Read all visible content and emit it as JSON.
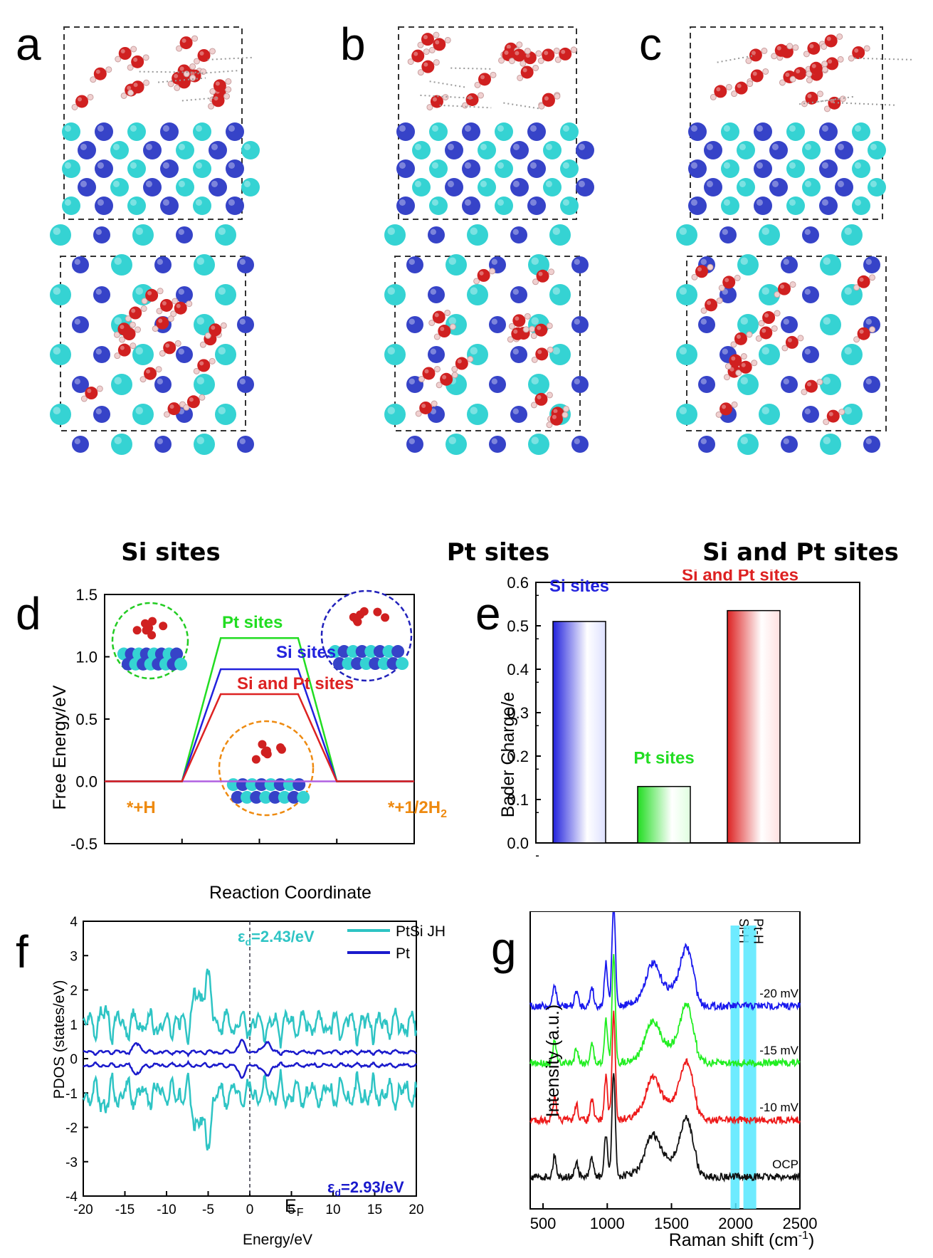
{
  "panel_labels": {
    "a": "a",
    "b": "b",
    "c": "c",
    "d": "d",
    "e": "e",
    "f": "f",
    "g": "g"
  },
  "structures": {
    "a": {
      "caption": "Si sites"
    },
    "b": {
      "caption": "Pt sites"
    },
    "c": {
      "caption": "Si and Pt sites"
    }
  },
  "colors": {
    "si_atom": "#35d3d3",
    "pt_atom": "#3643c8",
    "o_atom": "#d02020",
    "h_atom": "#f0d0d0",
    "pt_sites": "#22dd22",
    "si_sites": "#2222dd",
    "si_pt_sites": "#dd2222",
    "ref_line": "#b060e0",
    "state_label": "#ee8a10",
    "ptsi_jh": "#2ec4c4",
    "pt": "#1a1acc",
    "highlight": "#55e8ff"
  },
  "chart_data": [
    {
      "id": "d",
      "type": "line",
      "xlabel": "Reaction Coordinate",
      "ylabel": "Free Energy/eV",
      "ylim": [
        -0.5,
        1.5
      ],
      "yticks": [
        "-0.5",
        "0.0",
        "0.5",
        "1.0",
        "1.5"
      ],
      "series": [
        {
          "name": "Pt sites",
          "values": [
            0,
            0,
            1.15,
            1.15,
            0,
            0
          ]
        },
        {
          "name": "Si sites",
          "values": [
            0,
            0,
            0.9,
            0.9,
            0,
            0
          ]
        },
        {
          "name": "Si and Pt sites",
          "values": [
            0,
            0,
            0.7,
            0.7,
            0,
            0
          ]
        }
      ],
      "x": [
        0,
        1,
        1.5,
        2.5,
        3,
        4
      ],
      "annotations": {
        "initial": "*+H",
        "final_prefix": "*+1/2H",
        "final_sub": "2"
      }
    },
    {
      "id": "e",
      "type": "bar",
      "ylabel": "Bader Charge/e",
      "ylim": [
        0,
        0.6
      ],
      "yticks": [
        "0.0",
        "0.1",
        "0.2",
        "0.3",
        "0.4",
        "0.5",
        "0.6"
      ],
      "categories": [
        "Si sites",
        "Pt sites",
        "Si and Pt sites"
      ],
      "values": [
        0.51,
        0.13,
        0.535
      ]
    },
    {
      "id": "f",
      "type": "line",
      "xlabel": "Energy/eV",
      "ylabel": "PDOS (states/eV)",
      "xlim": [
        -20,
        20
      ],
      "ylim": [
        -4,
        4
      ],
      "xticks": [
        "-20",
        "-15",
        "-10",
        "-5",
        "0",
        "5",
        "10",
        "15",
        "20"
      ],
      "yticks": [
        "-4",
        "-3",
        "-2",
        "-1",
        "0",
        "1",
        "2",
        "3",
        "4"
      ],
      "series": [
        {
          "name": "PtSi JH"
        },
        {
          "name": "Pt"
        }
      ],
      "annotations": {
        "ed_top": "=2.43/eV",
        "ed_bottom": "=2.93/eV",
        "eps": "ε",
        "eps_sub": "d",
        "ef": "E",
        "ef_sub": "F"
      }
    },
    {
      "id": "g",
      "type": "line",
      "xlabel_prefix": "Raman shift (cm",
      "xlabel_sup": "-1",
      "xlabel_suffix": ")",
      "ylabel": "Intensity (a.u.)",
      "xlim": [
        400,
        2500
      ],
      "xticks": [
        "500",
        "1000",
        "1500",
        "2000",
        "2500"
      ],
      "series": [
        {
          "name": "-20 mV"
        },
        {
          "name": "-15 mV"
        },
        {
          "name": "-10 mV"
        },
        {
          "name": "OCP"
        }
      ],
      "bands": [
        {
          "label": "Si-H",
          "x": [
            1960,
            2030
          ]
        },
        {
          "label": "Pt-H",
          "x": [
            2060,
            2160
          ]
        }
      ]
    }
  ]
}
